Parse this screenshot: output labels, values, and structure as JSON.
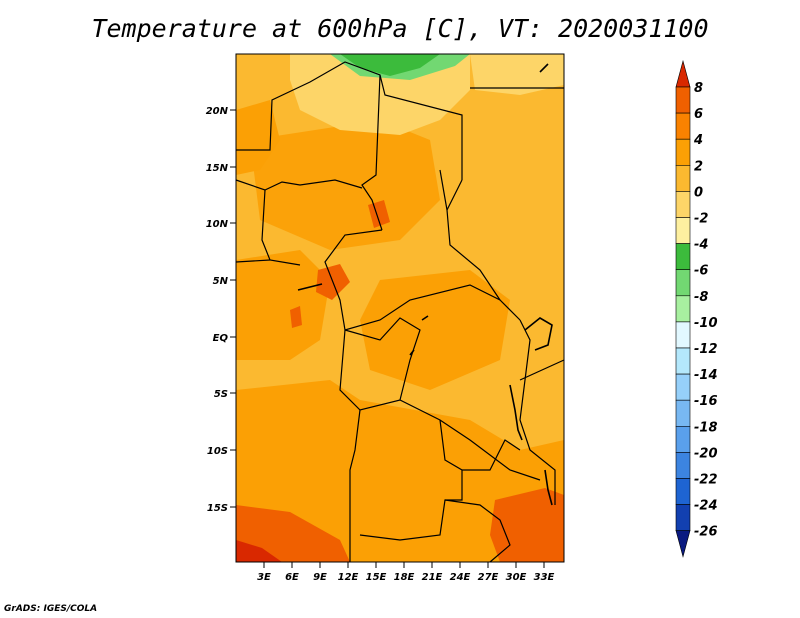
{
  "chart_data": {
    "type": "heatmap",
    "title": "Temperature at 600hPa [C], VT: 2020031100",
    "variable": "Temperature",
    "level": "600hPa",
    "units": "C",
    "valid_time": "2020031100",
    "lat_range": [
      -20,
      25
    ],
    "lon_range": [
      0,
      35
    ],
    "lat_ticks": [
      "20N",
      "15N",
      "10N",
      "5N",
      "EQ",
      "5S",
      "10S",
      "15S"
    ],
    "lon_ticks": [
      "3E",
      "6E",
      "9E",
      "12E",
      "15E",
      "18E",
      "21E",
      "24E",
      "27E",
      "30E",
      "33E"
    ],
    "colorbar": {
      "labels": [
        "8",
        "6",
        "4",
        "2",
        "0",
        "-2",
        "-4",
        "-6",
        "-8",
        "-10",
        "-12",
        "-14",
        "-16",
        "-18",
        "-20",
        "-22",
        "-24",
        "-26"
      ],
      "colors": [
        "#d92800",
        "#f06000",
        "#fa8200",
        "#fba005",
        "#fbb930",
        "#fdd568",
        "#fef0a0",
        "#3cbb3c",
        "#72d872",
        "#a8f0a0",
        "#e2f8ff",
        "#b4e8fc",
        "#96d0fa",
        "#78b8f2",
        "#5aa0ec",
        "#3c84e0",
        "#1e64d2",
        "#1240b0",
        "#0a1a80"
      ],
      "range": "-26 to 8, step 2"
    },
    "approx_field_range": [
      -8,
      8
    ]
  },
  "credit": "GrADS: IGES/COLA"
}
